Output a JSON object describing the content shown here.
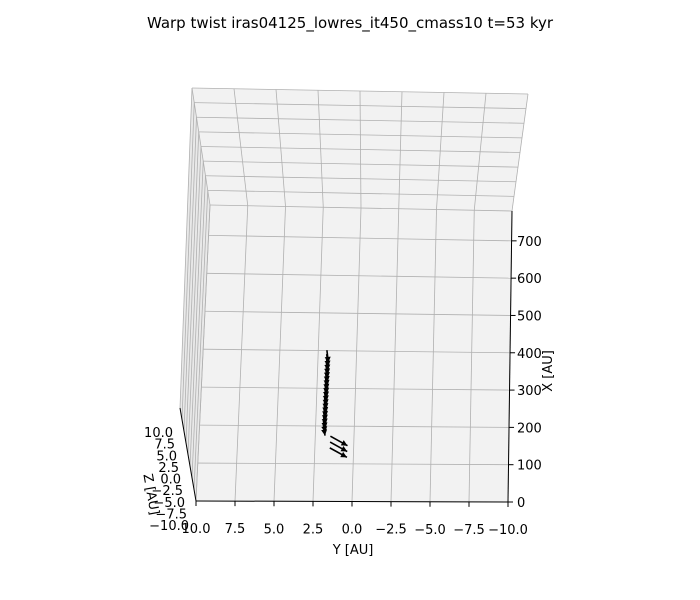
{
  "chart_data": {
    "type": "line",
    "title": "Warp twist iras04125_lowres_it450_cmass10 t=53 kyr",
    "projection": "3d",
    "grid": true,
    "axes": {
      "x": {
        "label": "X [AU]",
        "ticks": [
          "0",
          "100",
          "200",
          "300",
          "400",
          "500",
          "600",
          "700"
        ],
        "range": [
          0,
          780
        ]
      },
      "y": {
        "label": "Y [AU]",
        "ticks": [
          "10.0",
          "7.5",
          "5.0",
          "2.5",
          "0.0",
          "−2.5",
          "−5.0",
          "−7.5",
          "−10.0"
        ],
        "range": [
          10,
          -10
        ]
      },
      "z": {
        "label": "Z [AU]",
        "ticks": [
          "10.0",
          "7.5",
          "5.0",
          "2.5",
          "0.0",
          "−2.5",
          "−5.0",
          "−7.5",
          "−10.0"
        ],
        "range": [
          -10,
          10
        ]
      }
    },
    "series": [
      {
        "marker": "arrow",
        "color": "#000000",
        "vectors": [
          {
            "x": 280,
            "y": 1.5,
            "z": 1.0,
            "dy": 0,
            "dz": 2.5
          },
          {
            "x": 270,
            "y": 1.5,
            "z": 1.0,
            "dy": 0,
            "dz": 2.5
          },
          {
            "x": 260,
            "y": 1.5,
            "z": 1.0,
            "dy": 0,
            "dz": 2.5
          },
          {
            "x": 250,
            "y": 1.5,
            "z": 1.0,
            "dy": 0,
            "dz": 2.5
          },
          {
            "x": 240,
            "y": 1.5,
            "z": 1.0,
            "dy": 0,
            "dz": 2.5
          },
          {
            "x": 230,
            "y": 1.5,
            "z": 1.0,
            "dy": 0,
            "dz": 2.5
          },
          {
            "x": 220,
            "y": 1.5,
            "z": 1.0,
            "dy": 0,
            "dz": 2.5
          },
          {
            "x": 210,
            "y": 1.5,
            "z": 1.0,
            "dy": 0,
            "dz": 2.5
          },
          {
            "x": 200,
            "y": 1.5,
            "z": 1.0,
            "dy": 0,
            "dz": 2.5
          },
          {
            "x": 190,
            "y": 1.5,
            "z": 1.0,
            "dy": 0,
            "dz": 2.5
          },
          {
            "x": 180,
            "y": 1.5,
            "z": 1.0,
            "dy": 0,
            "dz": 2.5
          },
          {
            "x": 170,
            "y": 1.5,
            "z": 1.0,
            "dy": 0,
            "dz": 2.5
          },
          {
            "x": 160,
            "y": 1.5,
            "z": 1.0,
            "dy": 0,
            "dz": 2.5
          },
          {
            "x": 150,
            "y": 1.5,
            "z": 1.0,
            "dy": 0,
            "dz": 2.5
          },
          {
            "x": 140,
            "y": 1.5,
            "z": 1.0,
            "dy": 0,
            "dz": 2.5
          },
          {
            "x": 130,
            "y": 1.5,
            "z": 1.0,
            "dy": 0,
            "dz": 2.5
          },
          {
            "x": 120,
            "y": 1.5,
            "z": 1.0,
            "dy": 0,
            "dz": 2.5
          },
          {
            "x": 110,
            "y": 1.5,
            "z": 1.0,
            "dy": 0,
            "dz": 2.5
          },
          {
            "x": 100,
            "y": 1.5,
            "z": 1.0,
            "dy": 0,
            "dz": 2.5
          },
          {
            "x": 92,
            "y": 1.5,
            "z": 1.0,
            "dy": 0,
            "dz": 2.5
          },
          {
            "x": 60,
            "y": 1.0,
            "z": 1.0,
            "dy": 1.0,
            "dz": 2.0
          },
          {
            "x": 45,
            "y": 1.0,
            "z": 1.0,
            "dy": 1.0,
            "dz": 2.0
          },
          {
            "x": 30,
            "y": 1.0,
            "z": 1.0,
            "dy": 1.0,
            "dz": 2.0
          }
        ]
      }
    ]
  }
}
